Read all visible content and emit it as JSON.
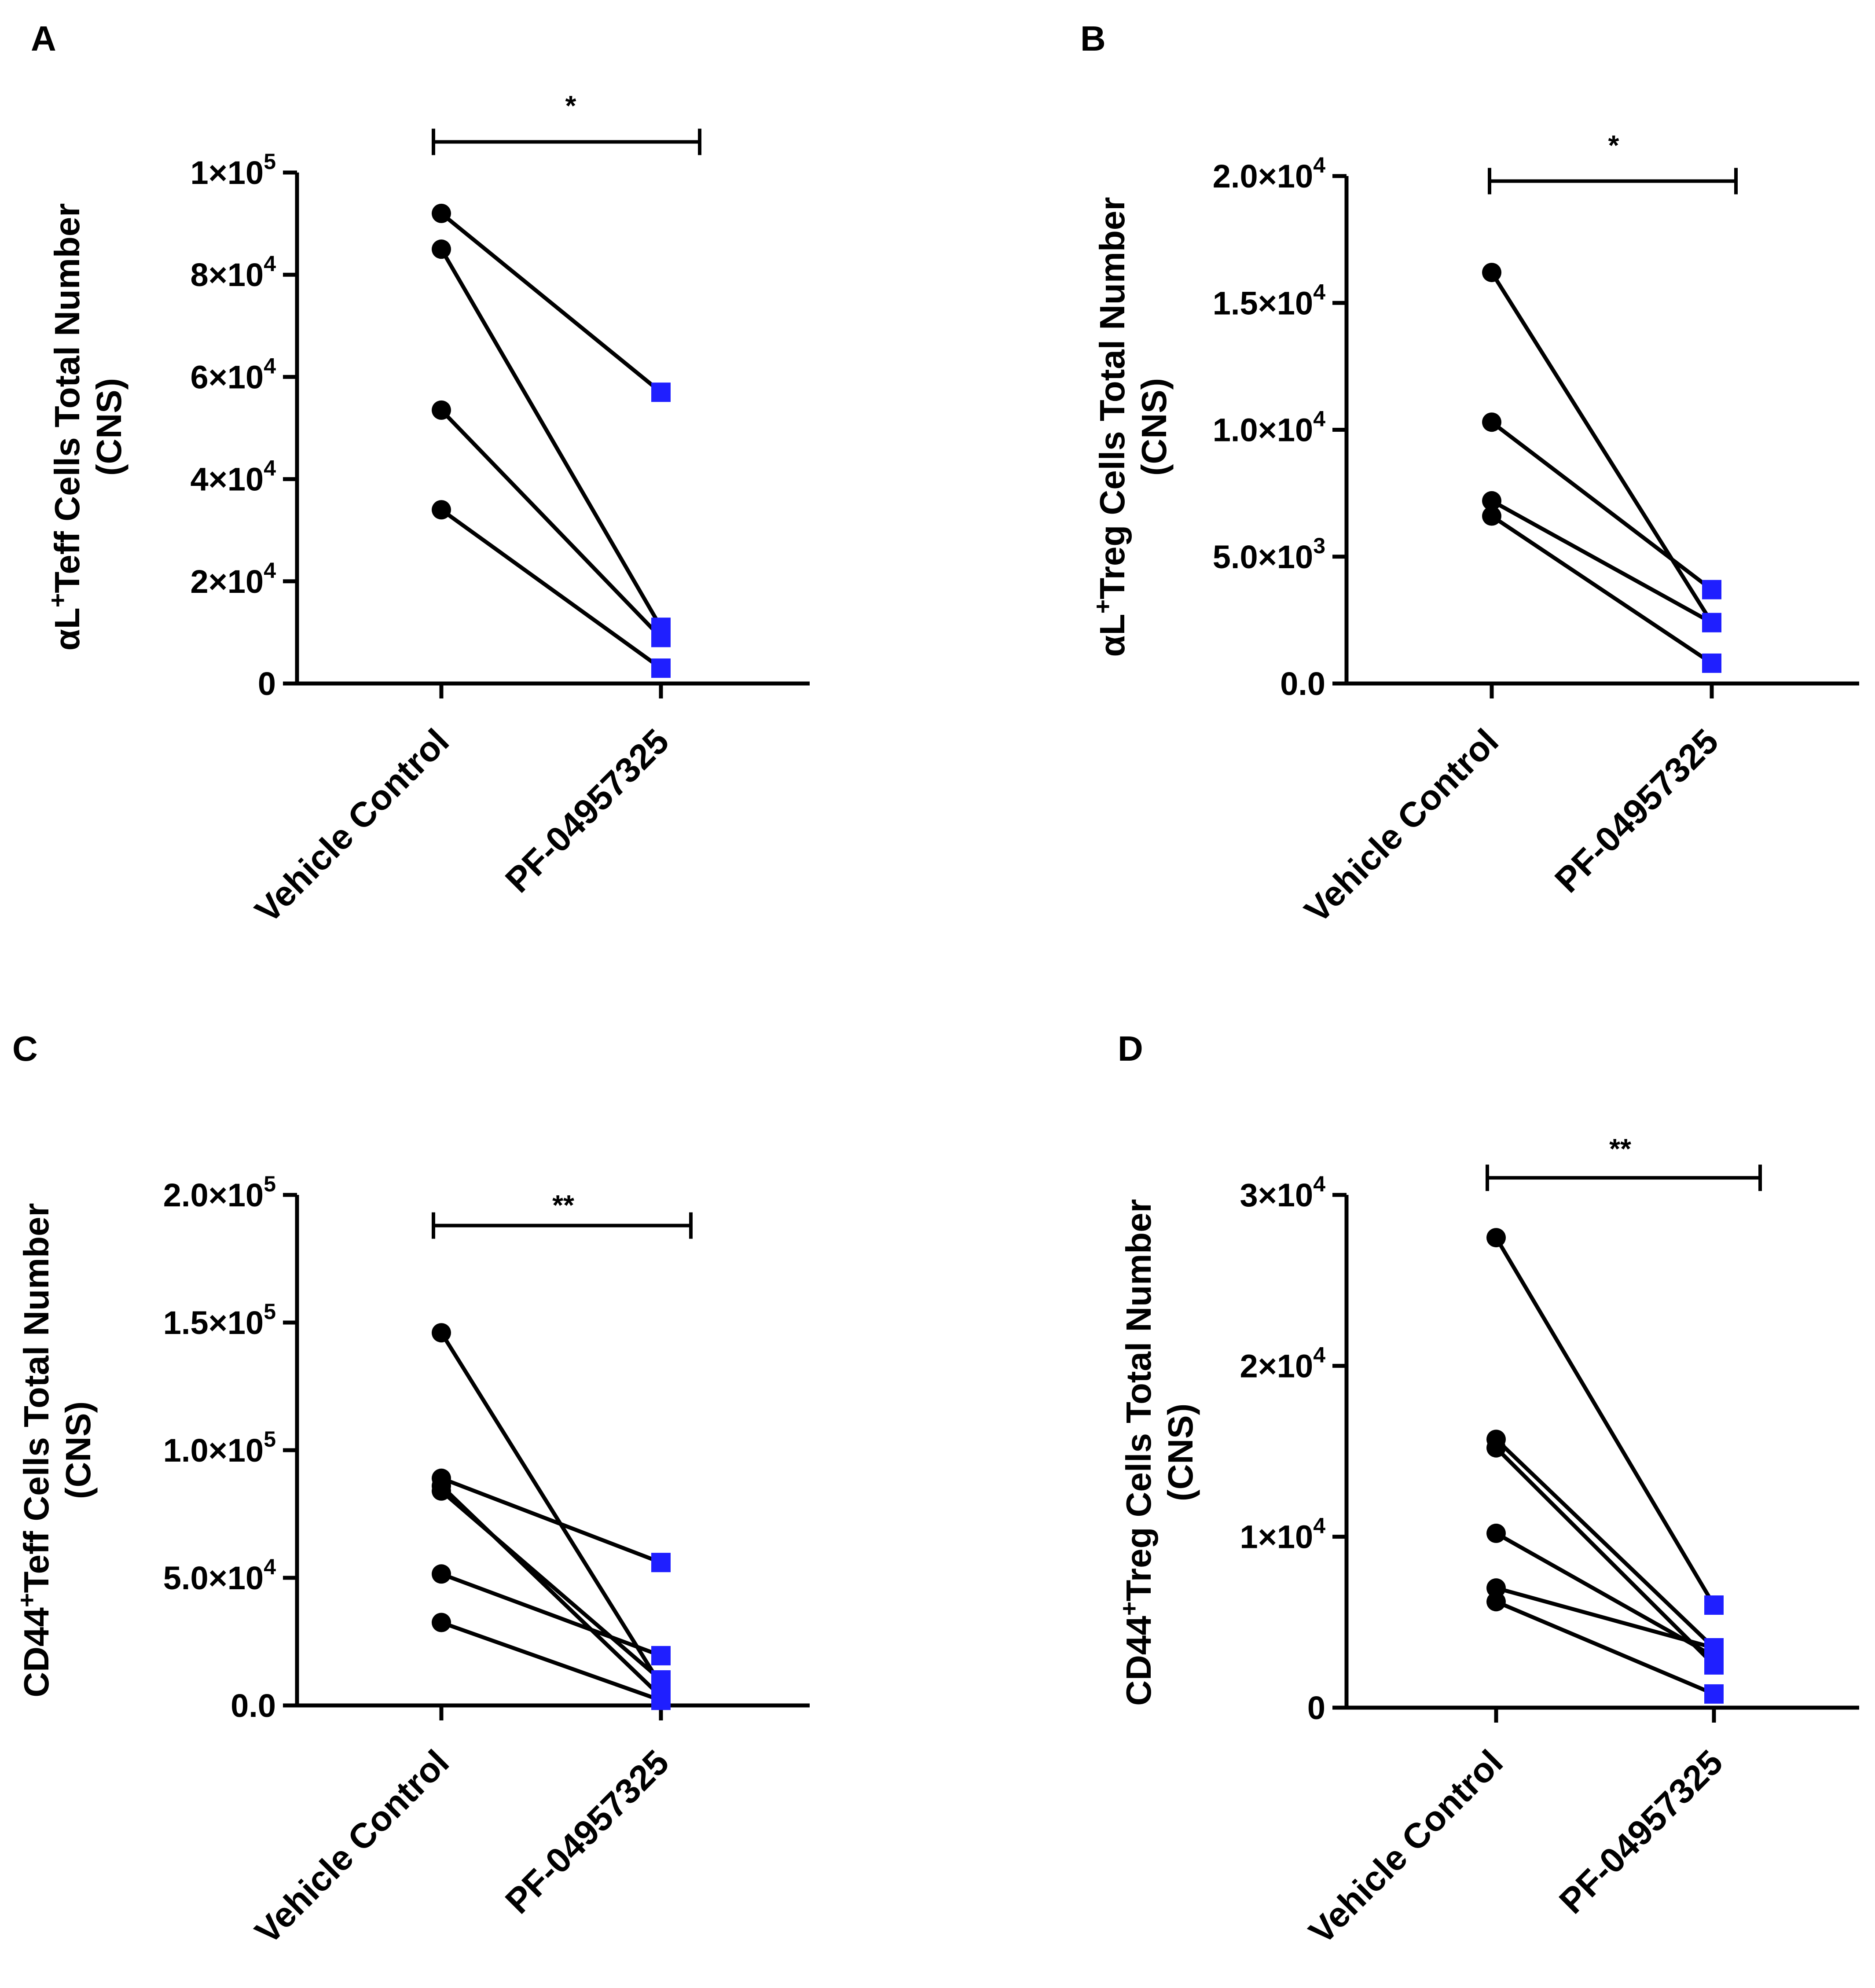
{
  "chart_data": [
    {
      "type": "paired-scatter",
      "panel": "A",
      "ylabel": {
        "prefix": "αL",
        "sup": "+",
        "rest": "Teff Cells Total Number",
        "line2": "(CNS)"
      },
      "categories": [
        "Vehicle Control",
        "PF-04957325"
      ],
      "ylim": [
        0,
        100000
      ],
      "ticks": [
        {
          "value": 0,
          "base": "0",
          "exp": ""
        },
        {
          "value": 20000,
          "base": "2×10",
          "exp": "4"
        },
        {
          "value": 40000,
          "base": "4×10",
          "exp": "4"
        },
        {
          "value": 60000,
          "base": "6×10",
          "exp": "4"
        },
        {
          "value": 80000,
          "base": "8×10",
          "exp": "4"
        },
        {
          "value": 100000,
          "base": "1×10",
          "exp": "5"
        }
      ],
      "pairs": [
        [
          92000,
          57000
        ],
        [
          85000,
          11000
        ],
        [
          53500,
          9000
        ],
        [
          34000,
          3000
        ]
      ],
      "significance": "*",
      "sig_value": 106000,
      "colors": {
        "vehicle": "#000000",
        "treatment": "#1f1fff"
      }
    },
    {
      "type": "paired-scatter",
      "panel": "B",
      "ylabel": {
        "prefix": "αL",
        "sup": "+",
        "rest": "Treg Cells Total Number",
        "line2": "(CNS)"
      },
      "categories": [
        "Vehicle Control",
        "PF-04957325"
      ],
      "ylim": [
        0,
        20000
      ],
      "ticks": [
        {
          "value": 0,
          "base": "0.0",
          "exp": ""
        },
        {
          "value": 5000,
          "base": "5.0×10",
          "exp": "3"
        },
        {
          "value": 10000,
          "base": "1.0×10",
          "exp": "4"
        },
        {
          "value": 15000,
          "base": "1.5×10",
          "exp": "4"
        },
        {
          "value": 20000,
          "base": "2.0×10",
          "exp": "4"
        }
      ],
      "pairs": [
        [
          16200,
          2400
        ],
        [
          10300,
          3700
        ],
        [
          7200,
          2400
        ],
        [
          6600,
          800
        ]
      ],
      "significance": "*",
      "sig_value": 19800,
      "colors": {
        "vehicle": "#000000",
        "treatment": "#1f1fff"
      }
    },
    {
      "type": "paired-scatter",
      "panel": "C",
      "ylabel": {
        "prefix": "CD44",
        "sup": "+",
        "rest": "Teff Cells Total Number",
        "line2": "(CNS)"
      },
      "categories": [
        "Vehicle Control",
        "PF-04957325"
      ],
      "ylim": [
        0,
        200000
      ],
      "ticks": [
        {
          "value": 0,
          "base": "0.0",
          "exp": ""
        },
        {
          "value": 50000,
          "base": "5.0×10",
          "exp": "4"
        },
        {
          "value": 100000,
          "base": "1.0×10",
          "exp": "5"
        },
        {
          "value": 150000,
          "base": "1.5×10",
          "exp": "5"
        },
        {
          "value": 200000,
          "base": "2.0×10",
          "exp": "5"
        }
      ],
      "pairs": [
        [
          146000,
          8000
        ],
        [
          89000,
          56000
        ],
        [
          86000,
          3500
        ],
        [
          84000,
          10000
        ],
        [
          51500,
          19500
        ],
        [
          32500,
          2000
        ]
      ],
      "significance": "**",
      "sig_value": 188000,
      "colors": {
        "vehicle": "#000000",
        "treatment": "#1f1fff"
      }
    },
    {
      "type": "paired-scatter",
      "panel": "D",
      "ylabel": {
        "prefix": "CD44",
        "sup": "+",
        "rest": "Treg Cells Total Number",
        "line2": "(CNS)"
      },
      "categories": [
        "Vehicle Control",
        "PF-04957325"
      ],
      "ylim": [
        0,
        30000
      ],
      "ticks": [
        {
          "value": 0,
          "base": "0",
          "exp": ""
        },
        {
          "value": 10000,
          "base": "1×10",
          "exp": "4"
        },
        {
          "value": 20000,
          "base": "2×10",
          "exp": "4"
        },
        {
          "value": 30000,
          "base": "3×10",
          "exp": "4"
        }
      ],
      "pairs": [
        [
          27500,
          6000
        ],
        [
          15700,
          3500
        ],
        [
          15200,
          2500
        ],
        [
          10200,
          3000
        ],
        [
          7000,
          3500
        ],
        [
          6200,
          800
        ]
      ],
      "significance": "**",
      "sig_value": 31000,
      "colors": {
        "vehicle": "#000000",
        "treatment": "#1f1fff"
      }
    }
  ]
}
